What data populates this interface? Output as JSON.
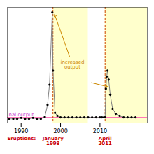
{
  "chart_data": {
    "type": "line",
    "x": [
      1987.0,
      1988.0,
      1989.0,
      1990.0,
      1991.0,
      1992.0,
      1993.0,
      1994.0,
      1995.0,
      1996.0,
      1996.7,
      1997.2,
      1997.9,
      1998.08,
      1998.6,
      1999.2,
      2000.0,
      2001.0,
      2002.0,
      2003.0,
      2004.0,
      2005.0,
      2006.0,
      2007.0,
      2008.0,
      2009.0,
      2010.0,
      2010.5,
      2011.0,
      2011.3,
      2011.5,
      2011.7,
      2011.9,
      2012.2,
      2012.6,
      2013.2,
      2014.0,
      2015.0,
      2016.0,
      2017.0,
      2018.0,
      2019.0
    ],
    "values": [
      0.04,
      0.04,
      0.04,
      0.05,
      0.04,
      0.04,
      0.05,
      0.04,
      0.04,
      0.06,
      0.18,
      0.38,
      1.1,
      0.52,
      0.1,
      0.07,
      0.055,
      0.055,
      0.055,
      0.055,
      0.055,
      0.055,
      0.055,
      0.055,
      0.055,
      0.055,
      0.055,
      0.055,
      0.055,
      0.055,
      0.34,
      0.46,
      0.52,
      0.43,
      0.28,
      0.14,
      0.09,
      0.07,
      0.055,
      0.055,
      0.055,
      0.055
    ],
    "color": "#808080",
    "marker": "circle",
    "xlim": [
      1986.5,
      2022
    ],
    "ylim": [
      0.0,
      1.15
    ],
    "xticks": [
      1990,
      2000,
      2010
    ],
    "tick_labels": "x",
    "shaded_regions": [
      {
        "x": [
          1998.08,
          2007.0
        ],
        "color": "#ffffcc"
      },
      {
        "x": [
          2011.3,
          2022
        ],
        "color": "#ffffcc"
      }
    ],
    "reference_line": {
      "y": 0.055,
      "color": "#ff69b4",
      "label": "nal output",
      "label_color": "#cc44cc"
    },
    "eruptions": {
      "label": "Eruptions:",
      "x": [
        1998.08,
        2011.3
      ],
      "labels": [
        "January\n1998",
        "April\n2011"
      ],
      "color": "#cc0000",
      "line_color": "#cc4400"
    },
    "annotation": {
      "text": "increased\noutput",
      "color": "#cc8800",
      "x": 2003.0,
      "y": 0.58,
      "arrows": [
        {
          "from": [
            2003.0,
            0.58
          ],
          "to": [
            1998.5,
            1.08
          ]
        },
        {
          "from": [
            2005.8,
            0.42
          ],
          "to": [
            2011.9,
            0.36
          ]
        }
      ]
    }
  }
}
